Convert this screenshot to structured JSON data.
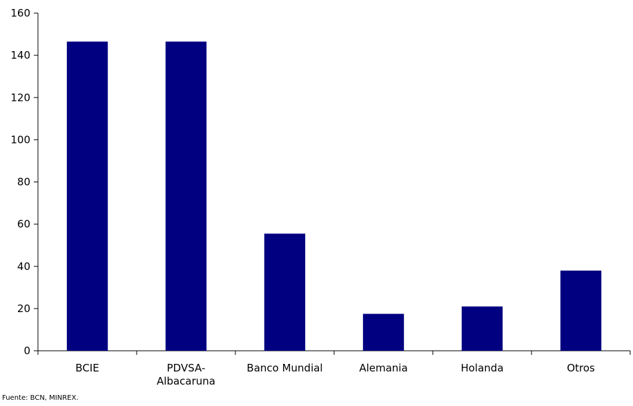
{
  "chart_data": {
    "type": "bar",
    "categories": [
      "BCIE",
      "PDVSA-\nAlbacaruna",
      "Banco Mundial",
      "Alemania",
      "Holanda",
      "Otros"
    ],
    "values": [
      146.5,
      146.5,
      55.5,
      17.5,
      21,
      38
    ],
    "ylim": [
      0,
      160
    ],
    "yticks": [
      0,
      20,
      40,
      60,
      80,
      100,
      120,
      140,
      160
    ],
    "bar_color": "#000080",
    "grid": false,
    "legend": "none"
  },
  "footer": {
    "source": "Fuente: BCN, MINREX."
  }
}
